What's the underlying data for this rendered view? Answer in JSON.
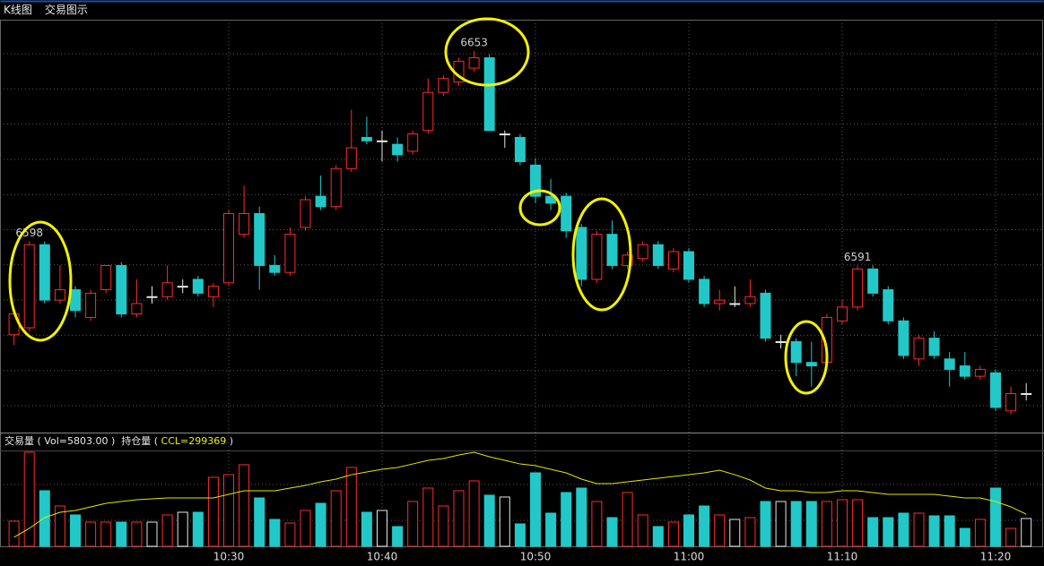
{
  "tabs": [
    "K线图",
    "交易图示"
  ],
  "chart_data": {
    "type": "candlestick",
    "categories": [
      null,
      null,
      null,
      null,
      null,
      null,
      null,
      null,
      null,
      null,
      null,
      null,
      null,
      null,
      "10:30",
      null,
      null,
      null,
      null,
      null,
      null,
      null,
      null,
      null,
      "10:40",
      null,
      null,
      null,
      null,
      null,
      null,
      null,
      null,
      null,
      "10:50",
      null,
      null,
      null,
      null,
      null,
      null,
      null,
      null,
      null,
      "11:00",
      null,
      null,
      null,
      null,
      null,
      null,
      null,
      null,
      null,
      "11:10",
      null,
      null,
      null,
      null,
      null,
      null,
      null,
      null,
      null,
      "11:20",
      null,
      null
    ],
    "open": [
      6571,
      6573,
      6597,
      6581,
      6584,
      6576,
      6584,
      6591,
      6577,
      6582,
      6582,
      6585,
      6587,
      6582,
      6586,
      6600,
      6606,
      6591,
      6589,
      6602,
      6611,
      6608,
      6619,
      6628,
      6627,
      6626,
      6624,
      6630,
      6641,
      6644,
      6648,
      6651,
      6629,
      6628,
      6620,
      6611,
      6611,
      6602,
      6587,
      6600,
      6591,
      6593,
      6597,
      6590,
      6595,
      6587,
      6580,
      6580,
      6580,
      6583,
      6569,
      6569,
      6563,
      6563,
      6575,
      6579,
      6590,
      6584,
      6575,
      6564,
      6570,
      6564,
      6562,
      6559,
      6560,
      6549,
      6554
    ],
    "high": [
      6578,
      6598,
      6598,
      6591,
      6585,
      6584,
      6591,
      6592,
      6587,
      6585,
      6591,
      6587,
      6588,
      6586,
      6607,
      6614,
      6608,
      6594,
      6602,
      6611,
      6617,
      6620,
      6636,
      6634,
      6630,
      6628,
      6630,
      6645,
      6646,
      6651,
      6653,
      6652,
      6630,
      6629,
      6622,
      6616,
      6612,
      6603,
      6601,
      6604,
      6595,
      6598,
      6598,
      6596,
      6596,
      6588,
      6584,
      6585,
      6587,
      6584,
      6571,
      6570,
      6569,
      6577,
      6581,
      6591,
      6591,
      6585,
      6576,
      6571,
      6572,
      6566,
      6566,
      6562,
      6561,
      6556,
      6557
    ],
    "low": [
      6568,
      6572,
      6580,
      6580,
      6576,
      6575,
      6583,
      6576,
      6576,
      6580,
      6581,
      6583,
      6582,
      6579,
      6585,
      6599,
      6584,
      6588,
      6588,
      6601,
      6607,
      6607,
      6618,
      6626,
      6621,
      6621,
      6623,
      6629,
      6640,
      6643,
      6647,
      6630,
      6625,
      6620,
      6609,
      6607,
      6599,
      6585,
      6586,
      6590,
      6590,
      6592,
      6590,
      6589,
      6586,
      6579,
      6578,
      6579,
      6579,
      6569,
      6567,
      6559,
      6556,
      6562,
      6574,
      6578,
      6582,
      6574,
      6564,
      6562,
      6564,
      6556,
      6558,
      6558,
      6549,
      6548,
      6552
    ],
    "close": [
      6577,
      6597,
      6581,
      6584,
      6578,
      6583,
      6591,
      6577,
      6580,
      6582,
      6586,
      6585,
      6583,
      6585,
      6606,
      6606,
      6591,
      6589,
      6600,
      6610,
      6608,
      6619,
      6625,
      6627,
      6627,
      6623,
      6629,
      6641,
      6645,
      6650,
      6651,
      6630,
      6629,
      6621,
      6611,
      6609,
      6601,
      6587,
      6600,
      6591,
      6594,
      6597,
      6591,
      6595,
      6587,
      6580,
      6581,
      6580,
      6582,
      6570,
      6569,
      6563,
      6562,
      6576,
      6579,
      6590,
      6583,
      6575,
      6565,
      6570,
      6565,
      6561,
      6559,
      6561,
      6550,
      6554,
      6554
    ],
    "high_labels": [
      null,
      "6598",
      null,
      null,
      null,
      null,
      null,
      null,
      null,
      null,
      null,
      null,
      null,
      null,
      null,
      null,
      null,
      null,
      null,
      null,
      null,
      null,
      null,
      null,
      null,
      null,
      null,
      null,
      null,
      null,
      "6653",
      null,
      null,
      null,
      null,
      null,
      null,
      null,
      null,
      null,
      null,
      null,
      null,
      null,
      null,
      null,
      null,
      null,
      null,
      null,
      null,
      null,
      null,
      null,
      null,
      "6591",
      null,
      null,
      null,
      null,
      null,
      null,
      null,
      null,
      null,
      null,
      null
    ],
    "ylim": [
      6543,
      6662
    ],
    "volume": [
      5236,
      19635,
      11594,
      8415,
      6545,
      5049,
      5049,
      5049,
      5049,
      5049,
      6545,
      7106,
      7106,
      14399,
      14960,
      17017,
      10098,
      5610,
      4862,
      7480,
      8976,
      11594,
      16456,
      7106,
      7480,
      4114,
      9350,
      12155,
      8415,
      11594,
      13651,
      10659,
      10285,
      4675,
      15334,
      6919,
      11220,
      12155,
      9350,
      5984,
      11220,
      6545,
      4114,
      5049,
      6545,
      8415,
      6545,
      5610,
      5984,
      9350,
      9350,
      9350,
      9350,
      9350,
      9724,
      9724,
      5984,
      5984,
      6919,
      6919,
      6358,
      6358,
      3740,
      5610,
      12155,
      3740,
      5803
    ],
    "volume_ylim": [
      0,
      20000
    ],
    "open_interest": [
      299031,
      299162,
      299319,
      299397,
      299423,
      299476,
      299528,
      299554,
      299580,
      299593,
      299606,
      299606,
      299606,
      299606,
      299659,
      299711,
      299711,
      299711,
      299750,
      299789,
      299842,
      299881,
      299946,
      299986,
      300025,
      300051,
      300103,
      300156,
      300182,
      300234,
      300273,
      300208,
      300156,
      300103,
      300077,
      300025,
      299973,
      299881,
      299816,
      299816,
      299842,
      299868,
      299894,
      299920,
      299946,
      299973,
      300012,
      299946,
      299868,
      299750,
      299711,
      299711,
      299685,
      299685,
      299711,
      299711,
      299685,
      299659,
      299659,
      299659,
      299659,
      299632,
      299606,
      299606,
      299554,
      299476,
      299369
    ],
    "open_interest_ylim": [
      298900,
      300300
    ],
    "volume_header": [
      "交易量 ( ",
      "Vol=5803.00",
      " )  ",
      "持仓量 ( ",
      "CCL=299369",
      " )"
    ],
    "up_color": "#ff2a2a",
    "down_color": "#22c8c8",
    "flat_color": "#e6e6e6",
    "open_interest_color": "#e6e600",
    "grid": true
  }
}
